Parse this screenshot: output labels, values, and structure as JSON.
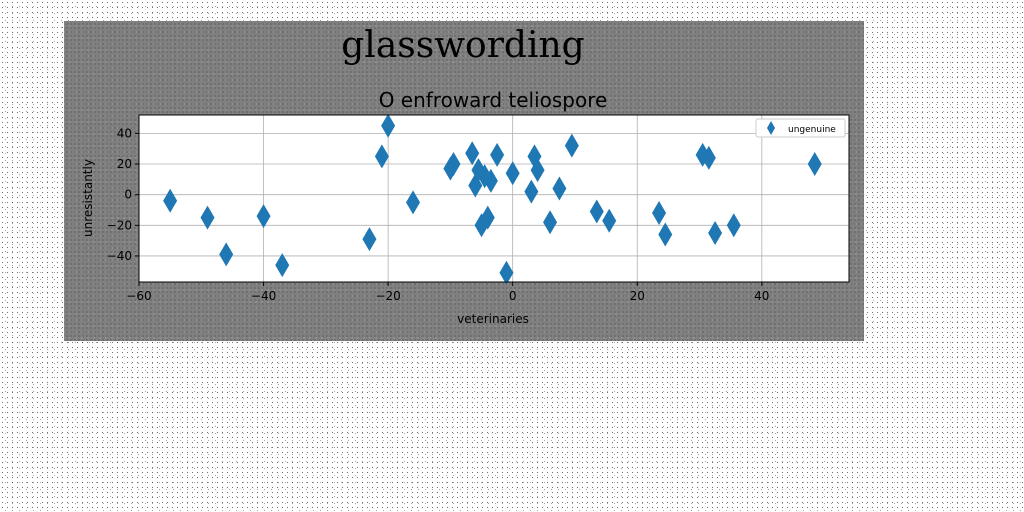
{
  "chart_data": {
    "type": "scatter",
    "suptitle": "glasswording",
    "title": "O enfroward teliospore",
    "xlabel": "veterinaries",
    "ylabel": "unresistantly",
    "xlim": [
      -60,
      54
    ],
    "ylim": [
      -57,
      52
    ],
    "xticks": [
      -60,
      -40,
      -20,
      0,
      20,
      40
    ],
    "yticks": [
      -40,
      -20,
      0,
      20,
      40
    ],
    "grid": true,
    "legend_position": "upper-right",
    "marker": "thin-diamond",
    "color": "#1f77b4",
    "series": [
      {
        "name": "ungenuine",
        "points": [
          [
            -55,
            -4
          ],
          [
            -49,
            -15
          ],
          [
            -46,
            -39
          ],
          [
            -40,
            -14
          ],
          [
            -37,
            -46
          ],
          [
            -23,
            -29
          ],
          [
            -21,
            25
          ],
          [
            -20,
            45
          ],
          [
            -16,
            -5
          ],
          [
            -10,
            17
          ],
          [
            -9.5,
            20
          ],
          [
            -6.5,
            27
          ],
          [
            -6,
            6
          ],
          [
            -5.5,
            16
          ],
          [
            -5,
            -20
          ],
          [
            -4.5,
            12
          ],
          [
            -4,
            -15
          ],
          [
            -3.5,
            9
          ],
          [
            -2.5,
            26
          ],
          [
            -1,
            -51
          ],
          [
            0,
            14
          ],
          [
            3,
            2
          ],
          [
            3.5,
            25
          ],
          [
            4,
            16
          ],
          [
            6,
            -18
          ],
          [
            7.5,
            4
          ],
          [
            9.5,
            32
          ],
          [
            13.5,
            -11
          ],
          [
            15.5,
            -17
          ],
          [
            23.5,
            -12
          ],
          [
            24.5,
            -26
          ],
          [
            30.5,
            26
          ],
          [
            31.5,
            24
          ],
          [
            32.5,
            -25
          ],
          [
            35.5,
            -20
          ],
          [
            48.5,
            20
          ]
        ]
      }
    ]
  }
}
